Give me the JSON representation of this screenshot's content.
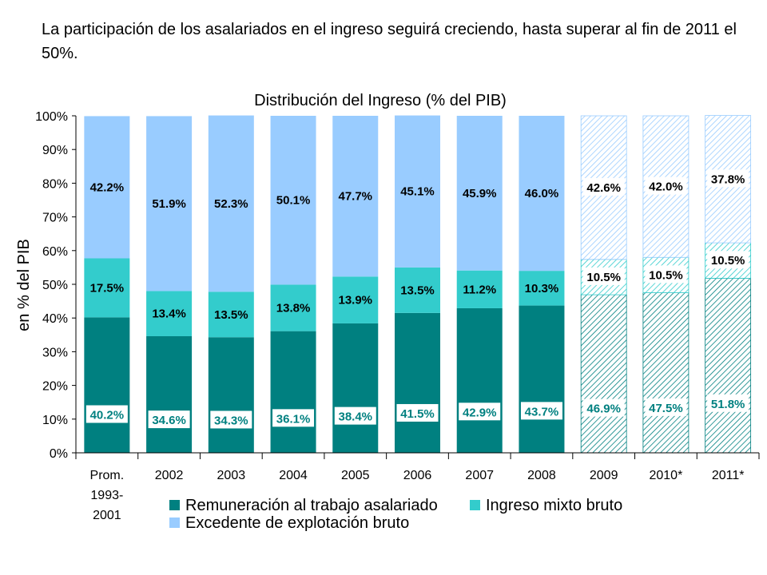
{
  "headline": "La  participación de los asalariados en el ingreso seguirá creciendo, hasta superar al fin de 2011 el 50%.",
  "chart_data": {
    "type": "bar",
    "stacked": true,
    "title": "Distribución del Ingreso (% del PIB)",
    "xlabel": "",
    "ylabel": "en % del PIB",
    "ylim": [
      0,
      100
    ],
    "y_ticks": [
      "0%",
      "10%",
      "20%",
      "30%",
      "40%",
      "50%",
      "60%",
      "70%",
      "80%",
      "90%",
      "100%"
    ],
    "categories": [
      "Prom. 1993-2001",
      "2002",
      "2003",
      "2004",
      "2005",
      "2006",
      "2007",
      "2008",
      "2009",
      "2010*",
      "2011*"
    ],
    "category_lines": [
      [
        "Prom.",
        "1993-",
        "2001"
      ],
      [
        "2002"
      ],
      [
        "2003"
      ],
      [
        "2004"
      ],
      [
        "2005"
      ],
      [
        "2006"
      ],
      [
        "2007"
      ],
      [
        "2008"
      ],
      [
        "2009"
      ],
      [
        "2010*"
      ],
      [
        "2011*"
      ]
    ],
    "projected": [
      false,
      false,
      false,
      false,
      false,
      false,
      false,
      false,
      true,
      true,
      true
    ],
    "series": [
      {
        "name": "Remuneración al trabajo asalariado",
        "color": "#008080",
        "values": [
          40.2,
          34.6,
          34.3,
          36.1,
          38.4,
          41.5,
          42.9,
          43.7,
          46.9,
          47.5,
          51.8
        ],
        "labels": [
          "40.2%",
          "34.6%",
          "34.3%",
          "36.1%",
          "38.4%",
          "41.5%",
          "42.9%",
          "43.7%",
          "46.9%",
          "47.5%",
          "51.8%"
        ]
      },
      {
        "name": "Ingreso mixto bruto",
        "color": "#33CCCC",
        "values": [
          17.5,
          13.4,
          13.5,
          13.8,
          13.9,
          13.5,
          11.2,
          10.3,
          10.5,
          10.5,
          10.5
        ],
        "labels": [
          "17.5%",
          "13.4%",
          "13.5%",
          "13.8%",
          "13.9%",
          "13.5%",
          "11.2%",
          "10.3%",
          "10.5%",
          "10.5%",
          "10.5%"
        ]
      },
      {
        "name": "Excedente de explotación bruto",
        "color": "#99CCFF",
        "values": [
          42.2,
          51.9,
          52.3,
          50.1,
          47.7,
          45.1,
          45.9,
          46.0,
          42.6,
          42.0,
          37.8
        ],
        "labels": [
          "42.2%",
          "51.9%",
          "52.3%",
          "50.1%",
          "47.7%",
          "45.1%",
          "45.9%",
          "46.0%",
          "42.6%",
          "42.0%",
          "37.8%"
        ]
      }
    ],
    "legend": [
      {
        "name": "Remuneración al trabajo asalariado",
        "color": "#008080"
      },
      {
        "name": "Ingreso mixto bruto",
        "color": "#33CCCC"
      },
      {
        "name": "Excedente de explotación bruto",
        "color": "#99CCFF"
      }
    ],
    "legend_position": "bottom"
  }
}
